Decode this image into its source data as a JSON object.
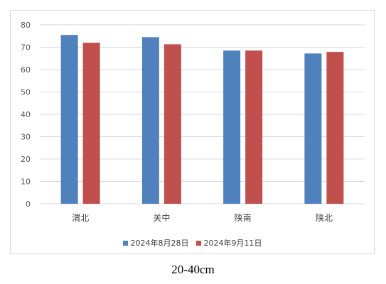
{
  "chart_data": {
    "type": "bar",
    "categories": [
      "渭北",
      "关中",
      "陕南",
      "陕北"
    ],
    "series": [
      {
        "name": "2024年8月28日",
        "color": "#4f81bd",
        "values": [
          75.5,
          74.5,
          68.5,
          67.2
        ]
      },
      {
        "name": "2024年9月11日",
        "color": "#c0504d",
        "values": [
          72.0,
          71.3,
          68.5,
          67.9
        ]
      }
    ],
    "ylim": [
      0,
      80
    ],
    "yticks": [
      0,
      10,
      20,
      30,
      40,
      50,
      60,
      70,
      80
    ],
    "grid": true,
    "legend_position": "bottom"
  },
  "caption": "20-40cm"
}
